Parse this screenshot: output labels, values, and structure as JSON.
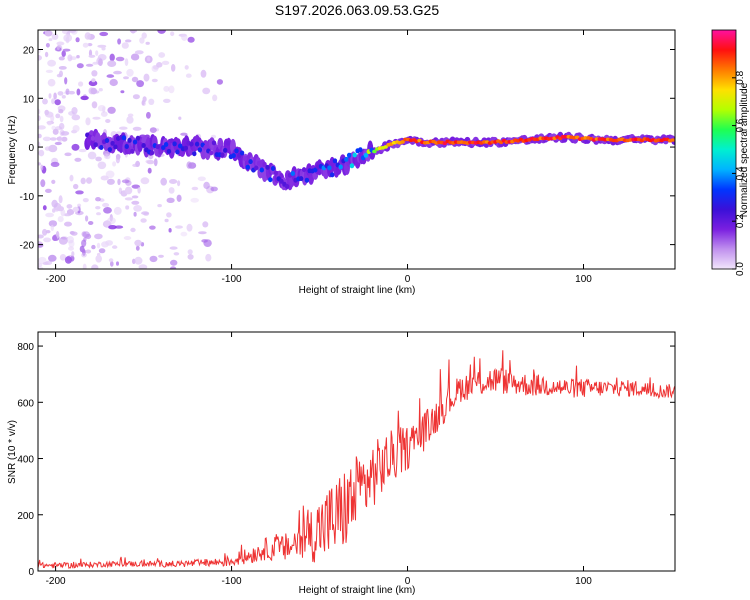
{
  "chart_data": [
    {
      "type": "heatmap",
      "title": "S197.2026.063.09.53.G25",
      "xlabel": "Height of straight line (km)",
      "ylabel": "Frequency (Hz)",
      "xlim": [
        -210,
        152
      ],
      "ylim": [
        -25,
        24
      ],
      "xticks": [
        -200,
        -100,
        0,
        100
      ],
      "xtick_labels": [
        "-200",
        "-100",
        "0",
        "100"
      ],
      "yticks": [
        -20,
        -10,
        0,
        10,
        20
      ],
      "ytick_labels": [
        "-20",
        "-10",
        "0",
        "10",
        "20"
      ],
      "colorbar": {
        "label": "Normalized spectral amplitude",
        "range": [
          0,
          1
        ],
        "ticks": [
          0.0,
          0.2,
          0.4,
          0.6,
          0.8
        ],
        "tick_labels": [
          "0.0",
          "0.2",
          "0.4",
          "0.6",
          "0.8"
        ],
        "colormap": [
          "#f2e6fb",
          "#c090ee",
          "#7a1fe0",
          "#3a10d8",
          "#0036ff",
          "#00b4ff",
          "#00f0d0",
          "#20ff50",
          "#b4ff00",
          "#ffe000",
          "#ff7a00",
          "#ff1010",
          "#ff10a0"
        ]
      },
      "ridge": {
        "x": [
          -180,
          -160,
          -140,
          -120,
          -100,
          -85,
          -70,
          -55,
          -40,
          -30,
          -20,
          -10,
          0,
          10,
          30,
          50,
          70,
          90,
          110,
          130,
          150
        ],
        "freq": [
          1.5,
          0.5,
          0.0,
          0.0,
          -0.5,
          -4.0,
          -7.0,
          -5.5,
          -4.0,
          -2.5,
          -1.0,
          0.5,
          1.5,
          1.0,
          1.0,
          1.0,
          1.5,
          2.0,
          1.5,
          1.5,
          1.5
        ],
        "amplitude": [
          0.25,
          0.3,
          0.3,
          0.3,
          0.3,
          0.3,
          0.35,
          0.35,
          0.4,
          0.55,
          0.7,
          0.85,
          0.9,
          0.95,
          0.95,
          0.95,
          0.95,
          0.95,
          0.95,
          0.95,
          0.95
        ]
      }
    },
    {
      "type": "line",
      "xlabel": "Height of straight line (km)",
      "ylabel": "SNR (10 * v/v)",
      "xlim": [
        -210,
        152
      ],
      "ylim": [
        0,
        850
      ],
      "xticks": [
        -200,
        -100,
        0,
        100
      ],
      "xtick_labels": [
        "-200",
        "-100",
        "0",
        "100"
      ],
      "yticks": [
        0,
        200,
        400,
        600,
        800
      ],
      "ytick_labels": [
        "0",
        "200",
        "400",
        "600",
        "800"
      ],
      "color": "#ee3333",
      "series": [
        {
          "name": "SNR",
          "x": [
            -210,
            -190,
            -170,
            -150,
            -130,
            -110,
            -100,
            -90,
            -80,
            -70,
            -60,
            -50,
            -40,
            -30,
            -20,
            -10,
            0,
            10,
            20,
            30,
            40,
            50,
            60,
            70,
            80,
            90,
            100,
            110,
            120,
            130,
            140,
            152
          ],
          "y": [
            20,
            20,
            25,
            25,
            25,
            30,
            35,
            55,
            80,
            80,
            110,
            150,
            190,
            260,
            340,
            400,
            440,
            500,
            580,
            650,
            670,
            680,
            670,
            660,
            660,
            650,
            650,
            650,
            650,
            650,
            640,
            640
          ],
          "noise": [
            10,
            10,
            10,
            10,
            12,
            15,
            20,
            30,
            40,
            50,
            80,
            120,
            150,
            150,
            120,
            100,
            80,
            70,
            60,
            50,
            50,
            50,
            45,
            40,
            40,
            35,
            35,
            30,
            30,
            30,
            25,
            25
          ]
        }
      ]
    }
  ]
}
